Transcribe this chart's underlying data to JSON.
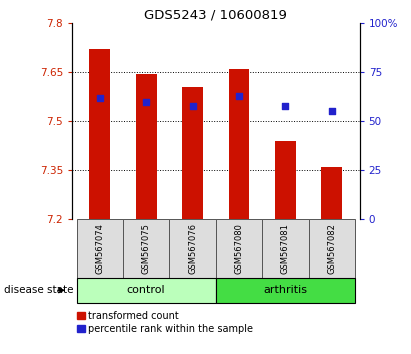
{
  "title": "GDS5243 / 10600819",
  "samples": [
    "GSM567074",
    "GSM567075",
    "GSM567076",
    "GSM567080",
    "GSM567081",
    "GSM567082"
  ],
  "bar_values": [
    7.72,
    7.645,
    7.605,
    7.66,
    7.44,
    7.36
  ],
  "bar_bottom": 7.2,
  "percentile_values": [
    62,
    60,
    58,
    63,
    58,
    55
  ],
  "ylim_left": [
    7.2,
    7.8
  ],
  "ylim_right": [
    0,
    100
  ],
  "yticks_left": [
    7.2,
    7.35,
    7.5,
    7.65,
    7.8
  ],
  "yticks_right": [
    0,
    25,
    50,
    75,
    100
  ],
  "ytick_labels_left": [
    "7.2",
    "7.35",
    "7.5",
    "7.65",
    "7.8"
  ],
  "ytick_labels_right": [
    "0",
    "25",
    "50",
    "75",
    "100%"
  ],
  "bar_color": "#cc1100",
  "dot_color": "#2222cc",
  "control_color": "#bbffbb",
  "arthritis_color": "#44dd44",
  "group_label_control": "control",
  "group_label_arthritis": "arthritis",
  "disease_state_label": "disease state",
  "legend_bar_label": "transformed count",
  "legend_dot_label": "percentile rank within the sample",
  "bar_width": 0.45,
  "dot_size": 18,
  "grid_color": "#000000",
  "tick_color_left": "#cc2200",
  "tick_color_right": "#2222cc",
  "bg_color": "#dddddd"
}
